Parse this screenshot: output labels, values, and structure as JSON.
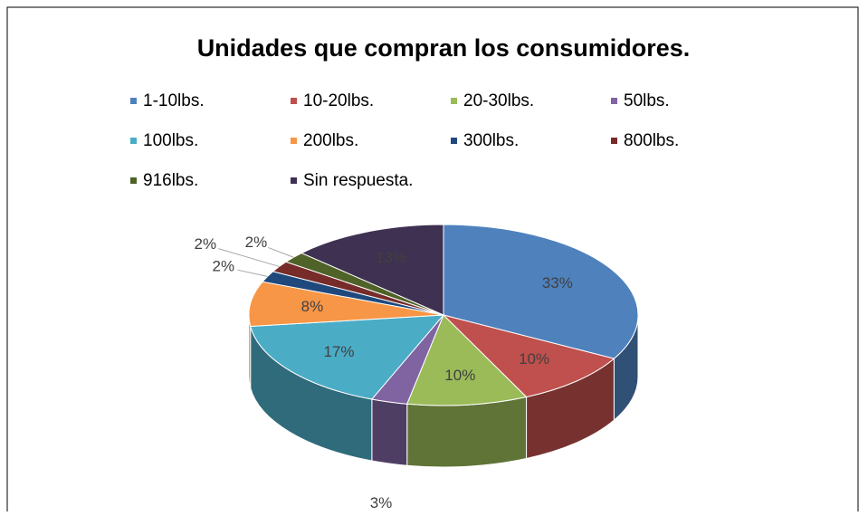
{
  "chart_data": {
    "type": "pie3d",
    "title": "Unidades que compran los consumidores.",
    "categories": [
      "1-10lbs.",
      "10-20lbs.",
      "20-30lbs.",
      "50lbs.",
      "100lbs.",
      "200lbs.",
      "300lbs.",
      "800lbs.",
      "916lbs.",
      "Sin respuesta."
    ],
    "values": [
      33,
      10,
      10,
      3,
      17,
      8,
      2,
      2,
      2,
      13
    ],
    "value_labels": [
      "33%",
      "10%",
      "10%",
      "3%",
      "17%",
      "8%",
      "2%",
      "2%",
      "2%",
      "13%"
    ],
    "colors": [
      "#4f81bd",
      "#c0504d",
      "#9bbb59",
      "#8064a2",
      "#4bacc6",
      "#f79646",
      "#1f497d",
      "#772c2a",
      "#4f6228",
      "#3f3151"
    ],
    "legend": "top"
  }
}
